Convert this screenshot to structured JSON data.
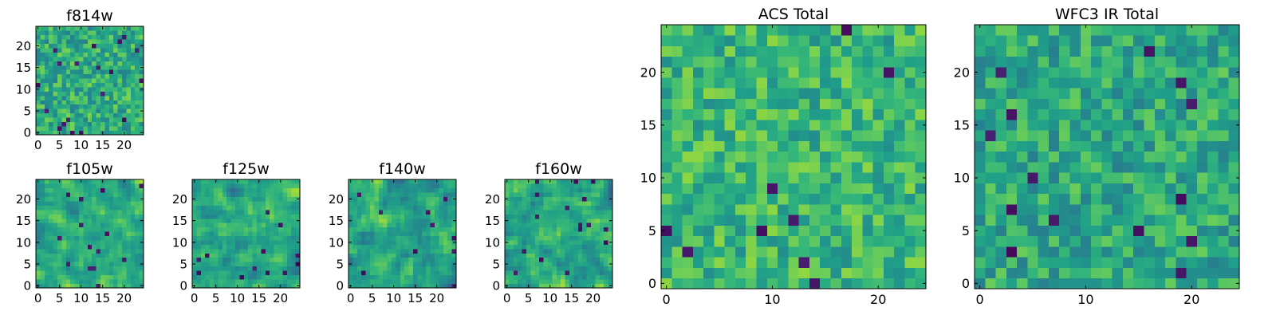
{
  "figure": {
    "colormap": "viridis",
    "background": "#ffffff",
    "frame_color": "#000000"
  },
  "chart_data": [
    {
      "id": "f814w",
      "type": "heatmap",
      "title": "f814w",
      "grid": [
        25,
        25
      ],
      "xlim": [
        -0.5,
        24.5
      ],
      "ylim": [
        -0.5,
        24.5
      ],
      "xticks": [
        0,
        5,
        10,
        15,
        20
      ],
      "yticks": [
        0,
        5,
        10,
        15,
        20
      ],
      "value_range": [
        0,
        1
      ],
      "seed": 11,
      "smooth": 0,
      "mean": 0.62,
      "spread": 0.18
    },
    {
      "id": "f105w",
      "type": "heatmap",
      "title": "f105w",
      "grid": [
        25,
        25
      ],
      "xlim": [
        -0.5,
        24.5
      ],
      "ylim": [
        -0.5,
        24.5
      ],
      "xticks": [
        0,
        5,
        10,
        15,
        20
      ],
      "yticks": [
        0,
        5,
        10,
        15,
        20
      ],
      "value_range": [
        0,
        1
      ],
      "seed": 23,
      "smooth": 1,
      "mean": 0.64,
      "spread": 0.22
    },
    {
      "id": "f125w",
      "type": "heatmap",
      "title": "f125w",
      "grid": [
        25,
        25
      ],
      "xlim": [
        -0.5,
        24.5
      ],
      "ylim": [
        -0.5,
        24.5
      ],
      "xticks": [
        0,
        5,
        10,
        15,
        20
      ],
      "yticks": [
        0,
        5,
        10,
        15,
        20
      ],
      "value_range": [
        0,
        1
      ],
      "seed": 37,
      "smooth": 1,
      "mean": 0.6,
      "spread": 0.26
    },
    {
      "id": "f140w",
      "type": "heatmap",
      "title": "f140w",
      "grid": [
        25,
        25
      ],
      "xlim": [
        -0.5,
        24.5
      ],
      "ylim": [
        -0.5,
        24.5
      ],
      "xticks": [
        0,
        5,
        10,
        15,
        20
      ],
      "yticks": [
        0,
        5,
        10,
        15,
        20
      ],
      "value_range": [
        0,
        1
      ],
      "seed": 41,
      "smooth": 1,
      "mean": 0.58,
      "spread": 0.26
    },
    {
      "id": "f160w",
      "type": "heatmap",
      "title": "f160w",
      "grid": [
        25,
        25
      ],
      "xlim": [
        -0.5,
        24.5
      ],
      "ylim": [
        -0.5,
        24.5
      ],
      "xticks": [
        0,
        5,
        10,
        15,
        20
      ],
      "yticks": [
        0,
        5,
        10,
        15,
        20
      ],
      "value_range": [
        0,
        1
      ],
      "seed": 53,
      "smooth": 1,
      "mean": 0.6,
      "spread": 0.26
    },
    {
      "id": "acs_total",
      "type": "heatmap",
      "title": "ACS Total",
      "grid": [
        25,
        25
      ],
      "xlim": [
        -0.5,
        24.5
      ],
      "ylim": [
        -0.5,
        24.5
      ],
      "xticks": [
        0,
        10,
        20
      ],
      "yticks": [
        0,
        5,
        10,
        15,
        20
      ],
      "value_range": [
        0,
        1
      ],
      "seed": 67,
      "smooth": 0,
      "mean": 0.66,
      "spread": 0.17
    },
    {
      "id": "wfc3_ir_total",
      "type": "heatmap",
      "title": "WFC3 IR Total",
      "grid": [
        25,
        25
      ],
      "xlim": [
        -0.5,
        24.5
      ],
      "ylim": [
        -0.5,
        24.5
      ],
      "xticks": [
        0,
        10,
        20
      ],
      "yticks": [
        0,
        5,
        10,
        15,
        20
      ],
      "value_range": [
        0,
        1
      ],
      "seed": 79,
      "smooth": 0,
      "mean": 0.6,
      "spread": 0.17
    }
  ]
}
